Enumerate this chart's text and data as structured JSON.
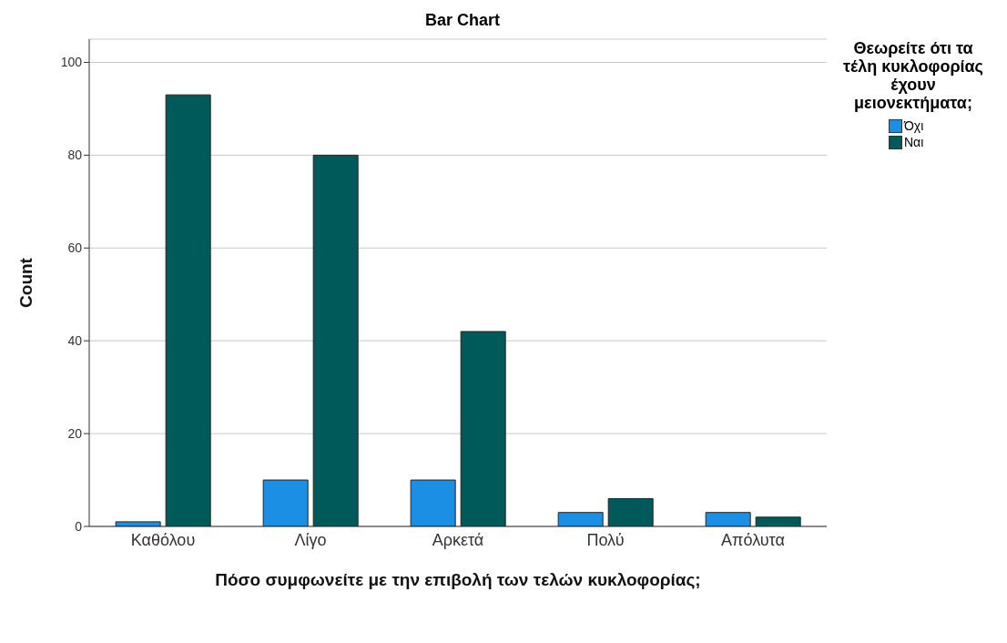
{
  "chart_data": {
    "type": "bar",
    "title": "Bar Chart",
    "xlabel": "Πόσο συμφωνείτε με την επιβολή των τελών κυκλοφορίας;",
    "ylabel": "Count",
    "legend_title": "Θεωρείτε ότι τα τέλη κυκλοφορίας έχουν μειονεκτήματα;",
    "categories": [
      "Καθόλου",
      "Λίγο",
      "Αρκετά",
      "Πολύ",
      "Απόλυτα"
    ],
    "series": [
      {
        "name": "Όχι",
        "color": "#1a8fe3",
        "values": [
          1,
          10,
          10,
          3,
          3
        ]
      },
      {
        "name": "Ναι",
        "color": "#005a5a",
        "values": [
          93,
          80,
          42,
          6,
          2
        ]
      }
    ],
    "ylim": [
      0,
      105
    ],
    "yticks": [
      0,
      20,
      40,
      60,
      80,
      100
    ],
    "grid": "y",
    "legend": "top right"
  }
}
